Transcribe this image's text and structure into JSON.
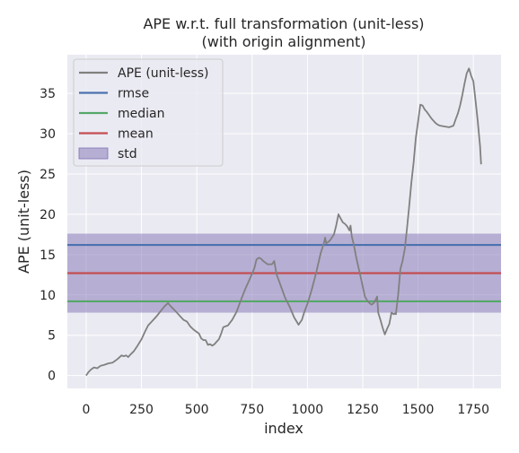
{
  "chart_data": {
    "type": "line",
    "title": "APE w.r.t. full transformation (unit-less)",
    "subtitle": "(with origin alignment)",
    "xlabel": "index",
    "ylabel": "APE (unit-less)",
    "xlim": [
      -85,
      1875
    ],
    "ylim": [
      -1.6,
      39.8
    ],
    "xticks": [
      0,
      250,
      500,
      750,
      1000,
      1250,
      1500,
      1750
    ],
    "yticks": [
      0,
      5,
      10,
      15,
      20,
      25,
      30,
      35
    ],
    "grid": true,
    "legend_position": "top-left",
    "colors": {
      "background": "#eaeaf2",
      "grid": "#ffffff",
      "ape": "#808080",
      "rmse": "#4c72b0",
      "median": "#55a868",
      "mean": "#c44e52",
      "std": "#8172b3"
    },
    "series": [
      {
        "name": "APE (unit-less)",
        "x": [
          0,
          10,
          20,
          35,
          50,
          65,
          80,
          100,
          120,
          140,
          160,
          170,
          180,
          190,
          200,
          215,
          230,
          250,
          265,
          280,
          300,
          320,
          340,
          355,
          370,
          385,
          400,
          420,
          440,
          455,
          470,
          485,
          500,
          510,
          520,
          530,
          540,
          545,
          550,
          560,
          570,
          580,
          590,
          600,
          610,
          620,
          640,
          660,
          680,
          700,
          720,
          740,
          760,
          770,
          780,
          790,
          800,
          810,
          820,
          840,
          850,
          860,
          880,
          900,
          920,
          940,
          960,
          975,
          985,
          1000,
          1020,
          1040,
          1060,
          1075,
          1080,
          1085,
          1090,
          1100,
          1110,
          1120,
          1130,
          1140,
          1150,
          1160,
          1170,
          1180,
          1190,
          1195,
          1200,
          1210,
          1220,
          1240,
          1260,
          1270,
          1280,
          1290,
          1300,
          1310,
          1315,
          1320,
          1330,
          1340,
          1350,
          1360,
          1370,
          1380,
          1390,
          1395,
          1400,
          1410,
          1420,
          1430,
          1440,
          1450,
          1460,
          1470,
          1480,
          1490,
          1500,
          1510,
          1520,
          1530,
          1540,
          1550,
          1560,
          1570,
          1580,
          1590,
          1600,
          1620,
          1640,
          1660,
          1670,
          1680,
          1690,
          1700,
          1710,
          1720,
          1730,
          1740,
          1750,
          1760,
          1770,
          1780,
          1785
        ],
        "y": [
          0.0,
          0.4,
          0.7,
          1.0,
          0.9,
          1.2,
          1.3,
          1.5,
          1.6,
          2.0,
          2.5,
          2.4,
          2.5,
          2.3,
          2.6,
          3.0,
          3.6,
          4.5,
          5.4,
          6.2,
          6.8,
          7.4,
          8.1,
          8.6,
          9.0,
          8.5,
          8.1,
          7.5,
          6.9,
          6.7,
          6.1,
          5.7,
          5.4,
          5.2,
          4.6,
          4.4,
          4.4,
          4.1,
          3.8,
          3.9,
          3.7,
          3.9,
          4.2,
          4.5,
          5.2,
          6.0,
          6.2,
          6.9,
          7.9,
          9.4,
          10.8,
          12.0,
          13.3,
          14.4,
          14.6,
          14.5,
          14.2,
          14.0,
          13.8,
          13.8,
          14.2,
          12.6,
          11.1,
          9.6,
          8.5,
          7.2,
          6.3,
          6.9,
          7.8,
          8.9,
          10.7,
          12.8,
          15.2,
          16.5,
          17.1,
          16.4,
          16.5,
          16.7,
          17.1,
          17.5,
          18.6,
          20.0,
          19.5,
          19.0,
          18.8,
          18.5,
          18.0,
          18.6,
          17.3,
          16.2,
          14.7,
          12.3,
          9.8,
          9.3,
          9.0,
          8.8,
          9.0,
          9.5,
          9.8,
          7.8,
          6.9,
          5.9,
          5.1,
          5.8,
          6.4,
          7.8,
          7.6,
          7.7,
          7.6,
          10.0,
          13.2,
          14.2,
          15.7,
          18.3,
          21.0,
          24.0,
          26.5,
          29.5,
          31.5,
          33.6,
          33.5,
          33.0,
          32.7,
          32.3,
          31.9,
          31.6,
          31.3,
          31.1,
          31.0,
          30.9,
          30.8,
          31.0,
          31.8,
          32.5,
          33.5,
          34.8,
          36.2,
          37.5,
          38.1,
          37.2,
          36.5,
          34.0,
          31.5,
          28.5,
          26.2
        ],
        "color": "#808080"
      }
    ],
    "reference_lines": [
      {
        "name": "rmse",
        "value": 16.2,
        "color": "#4c72b0"
      },
      {
        "name": "median",
        "value": 9.2,
        "color": "#55a868"
      },
      {
        "name": "mean",
        "value": 12.7,
        "color": "#c44e52"
      }
    ],
    "std_band": {
      "name": "std",
      "low": 7.8,
      "high": 17.6,
      "color": "#8172b3"
    }
  }
}
